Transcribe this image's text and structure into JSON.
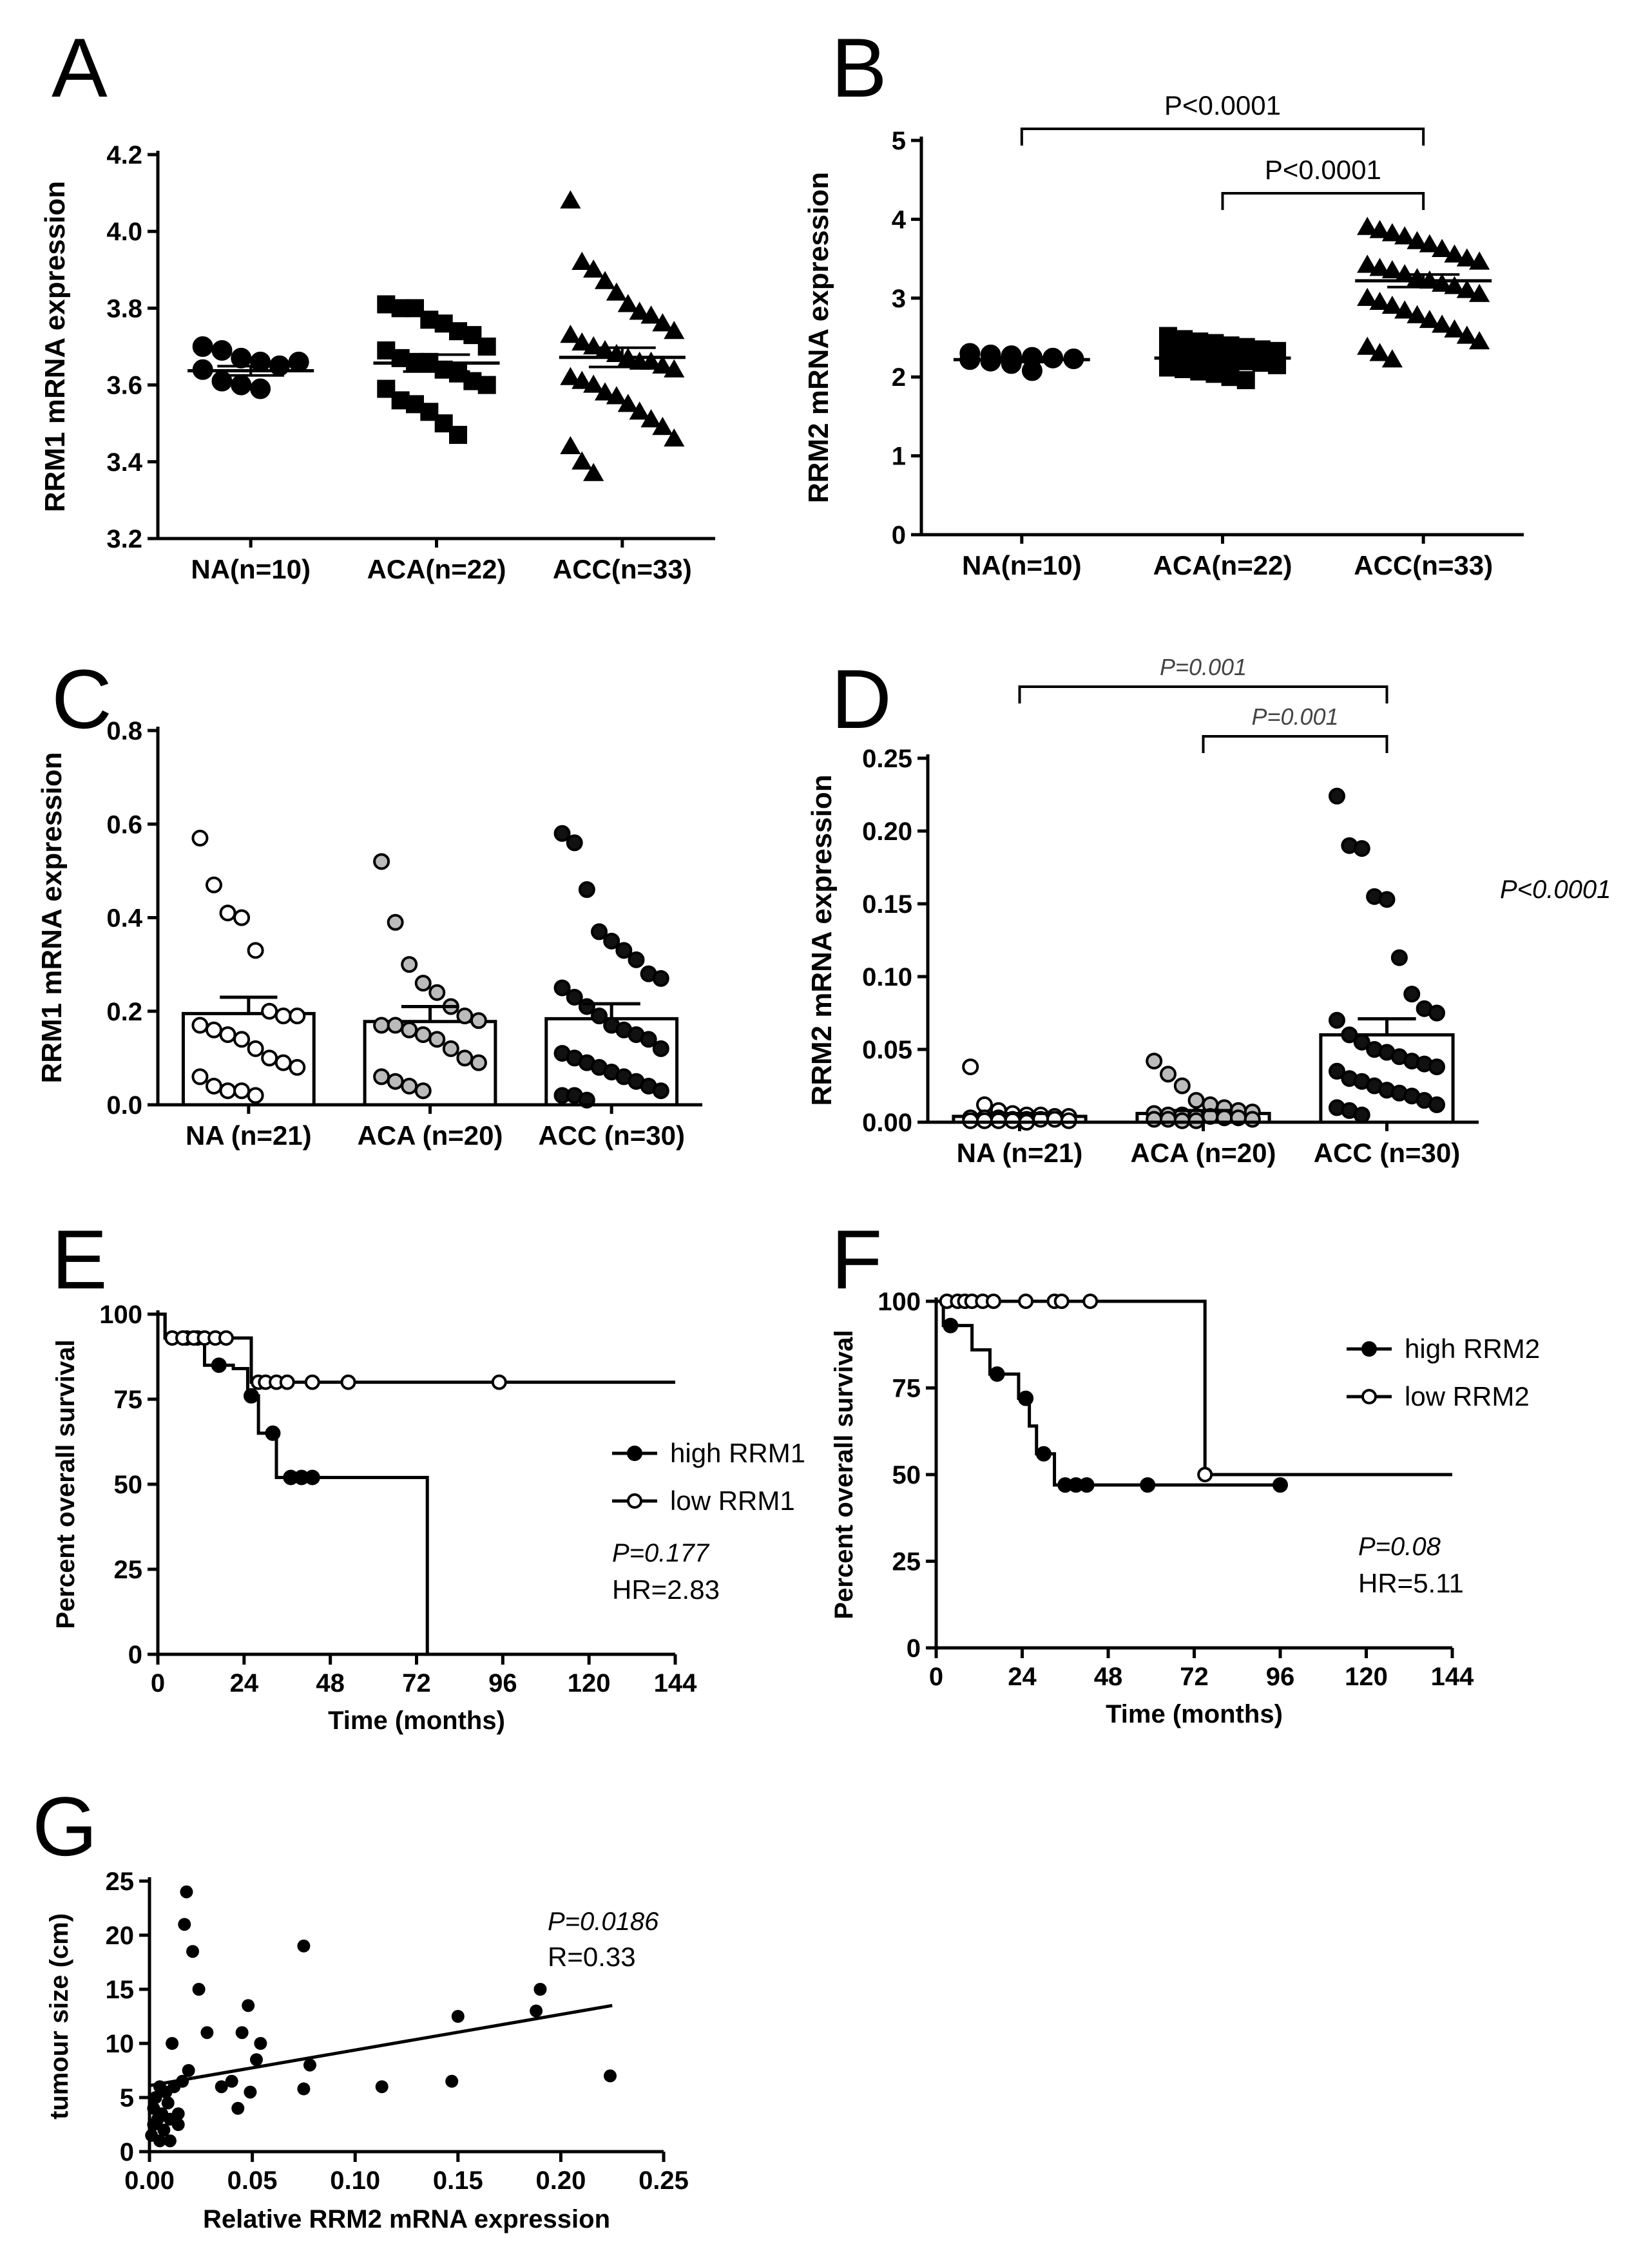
{
  "chart_data": [
    {
      "id": "A",
      "type": "scatter",
      "ylabel": "RRM1 mRNA expression",
      "ylim": [
        3.2,
        4.2
      ],
      "yticks": [
        "3.2",
        "3.4",
        "3.6",
        "3.8",
        "4.0",
        "4.2"
      ],
      "categories": [
        "NA(n=10)",
        "ACA(n=22)",
        "ACC(n=33)"
      ],
      "markers": [
        "circle",
        "square",
        "triangle"
      ],
      "means": [
        3.637,
        3.657,
        3.672
      ],
      "sems": [
        0.012,
        0.022,
        0.025
      ],
      "groups": [
        [
          3.7,
          3.69,
          3.67,
          3.66,
          3.65,
          3.66,
          3.64,
          3.61,
          3.6,
          3.59
        ],
        [
          3.81,
          3.8,
          3.8,
          3.77,
          3.76,
          3.74,
          3.73,
          3.7,
          3.69,
          3.67,
          3.66,
          3.66,
          3.64,
          3.63,
          3.61,
          3.6,
          3.59,
          3.56,
          3.55,
          3.53,
          3.5,
          3.47
        ],
        [
          4.08,
          3.92,
          3.9,
          3.87,
          3.84,
          3.81,
          3.79,
          3.78,
          3.76,
          3.74,
          3.73,
          3.71,
          3.7,
          3.69,
          3.68,
          3.67,
          3.66,
          3.66,
          3.65,
          3.64,
          3.62,
          3.61,
          3.6,
          3.58,
          3.57,
          3.55,
          3.53,
          3.51,
          3.49,
          3.46,
          3.44,
          3.4,
          3.37
        ]
      ]
    },
    {
      "id": "B",
      "type": "scatter",
      "ylabel": "RRM2 mRNA expression",
      "ylim": [
        0,
        5
      ],
      "yticks": [
        "0",
        "1",
        "2",
        "3",
        "4",
        "5"
      ],
      "categories": [
        "NA(n=10)",
        "ACA(n=22)",
        "ACC(n=33)"
      ],
      "markers": [
        "circle",
        "square",
        "triangle"
      ],
      "means": [
        2.22,
        2.24,
        3.22
      ],
      "sems": [
        0.03,
        0.04,
        0.08
      ],
      "groups": [
        [
          2.3,
          2.28,
          2.27,
          2.25,
          2.24,
          2.23,
          2.22,
          2.2,
          2.17,
          2.08
        ],
        [
          2.52,
          2.48,
          2.45,
          2.43,
          2.4,
          2.38,
          2.35,
          2.33,
          2.3,
          2.28,
          2.26,
          2.24,
          2.22,
          2.2,
          2.18,
          2.15,
          2.12,
          2.1,
          2.07,
          2.04,
          2.0,
          1.96
        ],
        [
          3.9,
          3.86,
          3.82,
          3.78,
          3.72,
          3.68,
          3.62,
          3.55,
          3.5,
          3.46,
          3.42,
          3.38,
          3.35,
          3.3,
          3.25,
          3.22,
          3.18,
          3.15,
          3.1,
          3.05,
          3.0,
          2.95,
          2.9,
          2.84,
          2.78,
          2.72,
          2.66,
          2.6,
          2.52,
          2.45,
          2.38,
          2.3,
          2.22
        ]
      ],
      "brackets": [
        {
          "from": 0,
          "to": 2,
          "label": "P<0.0001"
        },
        {
          "from": 1,
          "to": 2,
          "label": "P<0.0001"
        }
      ]
    },
    {
      "id": "C",
      "type": "bar",
      "ylabel": "RRM1 mRNA expression",
      "ylim": [
        0,
        0.8
      ],
      "yticks": [
        "0.0",
        "0.2",
        "0.4",
        "0.6",
        "0.8"
      ],
      "categories": [
        "NA (n=21)",
        "ACA (n=20)",
        "ACC (n=30)"
      ],
      "fills": [
        "#ffffff",
        "#bbbbbb",
        "#111111"
      ],
      "means": [
        0.195,
        0.178,
        0.184
      ],
      "sems": [
        0.035,
        0.032,
        0.032
      ],
      "groups": [
        [
          0.57,
          0.47,
          0.41,
          0.4,
          0.33,
          0.2,
          0.19,
          0.19,
          0.17,
          0.16,
          0.15,
          0.14,
          0.12,
          0.1,
          0.09,
          0.08,
          0.06,
          0.04,
          0.03,
          0.03,
          0.02
        ],
        [
          0.52,
          0.39,
          0.3,
          0.26,
          0.24,
          0.21,
          0.19,
          0.18,
          0.17,
          0.17,
          0.16,
          0.15,
          0.14,
          0.12,
          0.1,
          0.09,
          0.06,
          0.05,
          0.04,
          0.03
        ],
        [
          0.58,
          0.56,
          0.46,
          0.37,
          0.35,
          0.33,
          0.31,
          0.28,
          0.27,
          0.25,
          0.23,
          0.21,
          0.19,
          0.17,
          0.16,
          0.15,
          0.14,
          0.12,
          0.11,
          0.1,
          0.09,
          0.08,
          0.07,
          0.06,
          0.05,
          0.04,
          0.03,
          0.02,
          0.02,
          0.01
        ]
      ]
    },
    {
      "id": "D",
      "type": "bar",
      "ylabel": "RRM2 mRNA expression",
      "ylim": [
        0,
        0.25
      ],
      "yticks": [
        "0.00",
        "0.05",
        "0.10",
        "0.15",
        "0.20",
        "0.25"
      ],
      "categories": [
        "NA (n=21)",
        "ACA (n=20)",
        "ACC (n=30)"
      ],
      "fills": [
        "#ffffff",
        "#bbbbbb",
        "#111111"
      ],
      "means": [
        0.004,
        0.006,
        0.06
      ],
      "sems": [
        0.002,
        0.002,
        0.011
      ],
      "groups": [
        [
          0.038,
          0.012,
          0.008,
          0.006,
          0.005,
          0.005,
          0.004,
          0.004,
          0.003,
          0.003,
          0.003,
          0.002,
          0.002,
          0.002,
          0.002,
          0.001,
          0.001,
          0.001,
          0.001,
          0.001,
          0.0
        ],
        [
          0.042,
          0.033,
          0.025,
          0.015,
          0.012,
          0.01,
          0.008,
          0.007,
          0.006,
          0.005,
          0.005,
          0.004,
          0.004,
          0.003,
          0.003,
          0.002,
          0.002,
          0.002,
          0.001,
          0.001
        ],
        [
          0.224,
          0.19,
          0.188,
          0.155,
          0.153,
          0.113,
          0.088,
          0.078,
          0.075,
          0.07,
          0.06,
          0.055,
          0.05,
          0.048,
          0.045,
          0.042,
          0.04,
          0.038,
          0.035,
          0.03,
          0.028,
          0.025,
          0.022,
          0.02,
          0.018,
          0.015,
          0.012,
          0.01,
          0.008,
          0.005
        ]
      ],
      "brackets": [
        {
          "from": 0,
          "to": 2,
          "label": "P=0.001"
        },
        {
          "from": 1,
          "to": 2,
          "label": "P=0.001"
        }
      ],
      "side_annotation": "P<0.0001"
    },
    {
      "id": "E",
      "type": "line",
      "subtype": "kaplan-meier",
      "xlabel": "Time (months)",
      "ylabel": "Percent overall survival",
      "xlim": [
        0,
        144
      ],
      "ylim": [
        0,
        100
      ],
      "xticks": [
        "0",
        "24",
        "48",
        "72",
        "96",
        "120",
        "144"
      ],
      "yticks": [
        "0",
        "25",
        "50",
        "75",
        "100"
      ],
      "series": [
        {
          "name": "high RRM1",
          "marker": "filled",
          "steps": [
            [
              0,
              100
            ],
            [
              2,
              93
            ],
            [
              13,
              85
            ],
            [
              21,
              84
            ],
            [
              25,
              76
            ],
            [
              28,
              65
            ],
            [
              33,
              52
            ],
            [
              75,
              0
            ]
          ],
          "censored": [
            [
              8,
              93
            ],
            [
              11,
              93
            ],
            [
              17,
              85
            ],
            [
              26,
              76
            ],
            [
              32,
              65
            ],
            [
              37,
              52
            ],
            [
              40,
              52
            ],
            [
              43,
              52
            ]
          ]
        },
        {
          "name": "low RRM1",
          "marker": "open",
          "steps": [
            [
              0,
              100
            ],
            [
              2,
              93
            ],
            [
              26,
              80
            ],
            [
              144,
              80
            ]
          ],
          "censored": [
            [
              4,
              93
            ],
            [
              7,
              93
            ],
            [
              10,
              93
            ],
            [
              13,
              93
            ],
            [
              16,
              93
            ],
            [
              19,
              93
            ],
            [
              28,
              80
            ],
            [
              30,
              80
            ],
            [
              33,
              80
            ],
            [
              36,
              80
            ],
            [
              43,
              80
            ],
            [
              53,
              80
            ],
            [
              95,
              80
            ]
          ],
          "end_time": 144
        }
      ],
      "legend_position": "center-right",
      "p_value": "P=0.177",
      "hr": "HR=2.83"
    },
    {
      "id": "F",
      "type": "line",
      "subtype": "kaplan-meier",
      "xlabel": "Time (months)",
      "ylabel": "Percent overall survival",
      "xlim": [
        0,
        144
      ],
      "ylim": [
        0,
        100
      ],
      "xticks": [
        "0",
        "24",
        "48",
        "72",
        "96",
        "120",
        "144"
      ],
      "yticks": [
        "0",
        "25",
        "50",
        "75",
        "100"
      ],
      "series": [
        {
          "name": "high RRM2",
          "marker": "filled",
          "steps": [
            [
              0,
              100
            ],
            [
              2,
              93
            ],
            [
              10,
              86
            ],
            [
              15,
              79
            ],
            [
              23,
              72
            ],
            [
              26,
              64
            ],
            [
              28,
              56
            ],
            [
              33,
              47
            ],
            [
              96,
              47
            ]
          ],
          "censored": [
            [
              4,
              93
            ],
            [
              17,
              79
            ],
            [
              25,
              72
            ],
            [
              30,
              56
            ],
            [
              36,
              47
            ],
            [
              39,
              47
            ],
            [
              42,
              47
            ],
            [
              59,
              47
            ],
            [
              96,
              47
            ]
          ]
        },
        {
          "name": "low RRM2",
          "marker": "open",
          "steps": [
            [
              0,
              100
            ],
            [
              75,
              50
            ],
            [
              144,
              50
            ]
          ],
          "censored": [
            [
              3,
              100
            ],
            [
              6,
              100
            ],
            [
              8,
              100
            ],
            [
              10,
              100
            ],
            [
              13,
              100
            ],
            [
              16,
              100
            ],
            [
              25,
              100
            ],
            [
              33,
              100
            ],
            [
              35,
              100
            ],
            [
              43,
              100
            ],
            [
              75,
              50
            ]
          ]
        }
      ],
      "legend_position": "top-right",
      "p_value": "P=0.08",
      "hr": "HR=5.11"
    },
    {
      "id": "G",
      "type": "scatter",
      "xlabel": "Relative RRM2 mRNA expression",
      "ylabel": "tumour size (cm)",
      "xlim": [
        0,
        0.25
      ],
      "ylim": [
        0,
        25
      ],
      "xticks": [
        "0.00",
        "0.05",
        "0.10",
        "0.15",
        "0.20",
        "0.25"
      ],
      "yticks": [
        "0",
        "5",
        "10",
        "15",
        "20",
        "25"
      ],
      "points": [
        [
          0.001,
          1.5
        ],
        [
          0.002,
          2.5
        ],
        [
          0.002,
          4
        ],
        [
          0.003,
          5
        ],
        [
          0.004,
          3
        ],
        [
          0.005,
          6
        ],
        [
          0.005,
          1
        ],
        [
          0.006,
          3.5
        ],
        [
          0.007,
          2
        ],
        [
          0.008,
          5.5
        ],
        [
          0.009,
          4.5
        ],
        [
          0.01,
          3
        ],
        [
          0.01,
          1
        ],
        [
          0.011,
          10
        ],
        [
          0.012,
          6
        ],
        [
          0.014,
          3.5
        ],
        [
          0.014,
          2.5
        ],
        [
          0.016,
          6.5
        ],
        [
          0.017,
          21
        ],
        [
          0.018,
          24
        ],
        [
          0.019,
          7.5
        ],
        [
          0.021,
          18.5
        ],
        [
          0.024,
          15
        ],
        [
          0.028,
          11
        ],
        [
          0.035,
          6
        ],
        [
          0.04,
          6.5
        ],
        [
          0.043,
          4
        ],
        [
          0.045,
          11
        ],
        [
          0.048,
          13.5
        ],
        [
          0.049,
          5.5
        ],
        [
          0.052,
          8.5
        ],
        [
          0.054,
          10
        ],
        [
          0.075,
          19
        ],
        [
          0.075,
          5.8
        ],
        [
          0.078,
          8
        ],
        [
          0.113,
          6
        ],
        [
          0.147,
          6.5
        ],
        [
          0.15,
          12.5
        ],
        [
          0.188,
          13
        ],
        [
          0.19,
          15
        ],
        [
          0.224,
          7
        ]
      ],
      "regression": {
        "x0": 0,
        "y0": 6.1,
        "x1": 0.225,
        "y1": 13.5
      },
      "p_value": "P=0.0186",
      "r_value": "R=0.33"
    }
  ]
}
